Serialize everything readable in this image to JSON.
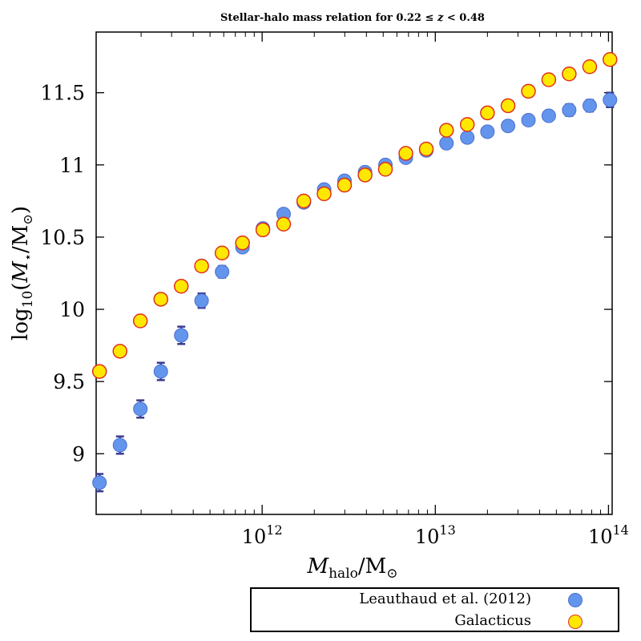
{
  "chart_data": {
    "type": "scatter",
    "title": "Stellar-halo mass relation for 0.22 ≤ z < 0.48",
    "xlabel": "M_halo/M_⊙",
    "ylabel": "log10(M⋆/M⊙)",
    "xscale": "log",
    "xlim": [
      110000000000.0,
      105000000000000.0
    ],
    "ylim": [
      8.58,
      11.92
    ],
    "xticks": [
      1000000000000.0,
      10000000000000.0,
      100000000000000.0
    ],
    "xtick_labels": [
      "10^12",
      "10^13",
      "10^14"
    ],
    "yticks": [
      9,
      9.5,
      10,
      10.5,
      11,
      11.5
    ],
    "ytick_labels": [
      "9",
      "9.5",
      "10",
      "10.5",
      "11",
      "11.5"
    ],
    "grid": false,
    "legend_position": "bottom-right (below plot)",
    "series": [
      {
        "name": "Leauthaud et al. (2012)",
        "color": "#6495ED",
        "edge_color": "#3b3b8f",
        "x": [
          115000000000.0,
          151000000000.0,
          198000000000.0,
          260000000000.0,
          341000000000.0,
          447000000000.0,
          587000000000.0,
          770000000000.0,
          1010000000000.0,
          1330000000000.0,
          1740000000000.0,
          2280000000000.0,
          2990000000000.0,
          3930000000000.0,
          5150000000000.0,
          6760000000000.0,
          8870000000000.0,
          11600000000000.0,
          15300000000000.0,
          20000000000000.0,
          26300000000000.0,
          34500000000000.0,
          45200000000000.0,
          59300000000000.0,
          77900000000000.0,
          102000000000000.0
        ],
        "y": [
          8.8,
          9.06,
          9.31,
          9.57,
          9.82,
          10.06,
          10.26,
          10.43,
          10.56,
          10.66,
          10.74,
          10.83,
          10.89,
          10.95,
          11.0,
          11.05,
          11.1,
          11.15,
          11.19,
          11.23,
          11.27,
          11.31,
          11.34,
          11.38,
          11.41,
          11.45
        ],
        "yerr": [
          0.06,
          0.06,
          0.06,
          0.06,
          0.06,
          0.05,
          0.04,
          0.03,
          0.02,
          0.02,
          0.02,
          0.02,
          0.02,
          0.02,
          0.02,
          0.02,
          0.02,
          0.02,
          0.02,
          0.02,
          0.02,
          0.02,
          0.03,
          0.04,
          0.04,
          0.05
        ]
      },
      {
        "name": "Galacticus",
        "color": "#FFE800",
        "edge_color": "#e03020",
        "x": [
          115000000000.0,
          151000000000.0,
          198000000000.0,
          260000000000.0,
          341000000000.0,
          447000000000.0,
          587000000000.0,
          770000000000.0,
          1010000000000.0,
          1330000000000.0,
          1740000000000.0,
          2280000000000.0,
          2990000000000.0,
          3930000000000.0,
          5150000000000.0,
          6760000000000.0,
          8870000000000.0,
          11600000000000.0,
          15300000000000.0,
          20000000000000.0,
          26300000000000.0,
          34500000000000.0,
          45200000000000.0,
          59300000000000.0,
          77900000000000.0,
          102000000000000.0
        ],
        "y": [
          9.57,
          9.71,
          9.92,
          10.07,
          10.16,
          10.3,
          10.39,
          10.46,
          10.55,
          10.59,
          10.75,
          10.8,
          10.86,
          10.93,
          10.97,
          11.08,
          11.11,
          11.24,
          11.28,
          11.36,
          11.41,
          11.51,
          11.59,
          11.63,
          11.68,
          11.73
        ]
      }
    ]
  }
}
